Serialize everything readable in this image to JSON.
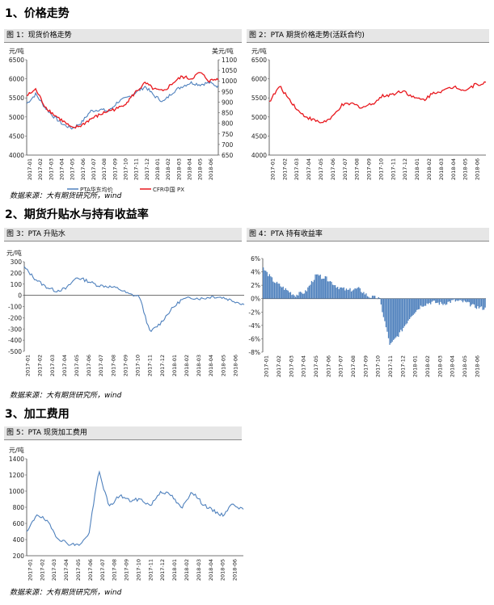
{
  "sections": [
    {
      "title": "1、价格走势"
    },
    {
      "title": "2、期货升贴水与持有收益率"
    },
    {
      "title": "3、加工费用"
    }
  ],
  "sources": [
    "数据来源：大有期货研究所，wind",
    "数据来源：大有期货研究所，wind",
    "数据来源：大有期货研究所，wind"
  ],
  "figures": {
    "fig1": {
      "caption": "图 1：现货价格走势"
    },
    "fig2": {
      "caption": "图 2：PTA 期货价格走势(活跃合约)"
    },
    "fig3": {
      "caption": "图 3：PTA 升贴水"
    },
    "fig4": {
      "caption": "图 4：PTA 持有收益率"
    },
    "fig5": {
      "caption": "图 5：PTA 现货加工费用"
    }
  },
  "chart_data": [
    {
      "id": "fig1",
      "type": "line",
      "ylabel": "元/吨",
      "y2label": "美元/吨",
      "ylim": [
        4000,
        6500
      ],
      "yticks": [
        "4000",
        "4500",
        "5000",
        "5500",
        "6000",
        "6500"
      ],
      "y2lim": [
        650,
        1100
      ],
      "y2ticks": [
        "650",
        "700",
        "750",
        "800",
        "850",
        "900",
        "950",
        "1000",
        "1050",
        "1100"
      ],
      "xticks": [
        "2017-01",
        "2017-02",
        "2017-03",
        "2017-04",
        "2017-05",
        "2017-06",
        "2017-07",
        "2017-08",
        "2017-09",
        "2017-10",
        "2017-11",
        "2017-12",
        "2018-01",
        "2018-02",
        "2018-03",
        "2018-04",
        "2018-05",
        "2018-06"
      ],
      "legend_position": "bottom",
      "series": [
        {
          "name": "PTA华东均价",
          "axis": "left",
          "color": "#4f81bd",
          "values": [
            5350,
            5600,
            5250,
            5000,
            4800,
            4700,
            4850,
            5150,
            5200,
            5150,
            5400,
            5500,
            5650,
            5800,
            5550,
            5400,
            5650,
            5800,
            5900,
            5850,
            5900,
            5800
          ]
        },
        {
          "name": "CFR中国 PX",
          "axis": "right",
          "color": "#e8181e",
          "values": [
            930,
            960,
            880,
            840,
            810,
            775,
            790,
            820,
            840,
            860,
            870,
            900,
            950,
            990,
            960,
            950,
            990,
            1020,
            1010,
            1040,
            1000,
            1010
          ]
        }
      ]
    },
    {
      "id": "fig2",
      "type": "line",
      "ylabel": "元/吨",
      "ylim": [
        4000,
        6500
      ],
      "yticks": [
        "4000",
        "4500",
        "5000",
        "5500",
        "6000",
        "6500"
      ],
      "xticks": [
        "2017-01",
        "2017-02",
        "2017-03",
        "2017-04",
        "2017-05",
        "2017-06",
        "2017-07",
        "2017-08",
        "2017-09",
        "2017-10",
        "2017-11",
        "2017-12",
        "2018-01",
        "2018-02",
        "2018-03",
        "2018-04",
        "2018-05",
        "2018-06"
      ],
      "series": [
        {
          "name": "",
          "color": "#e8181e",
          "values": [
            5400,
            5800,
            5450,
            5100,
            4950,
            4850,
            4950,
            5300,
            5350,
            5250,
            5350,
            5550,
            5600,
            5700,
            5500,
            5450,
            5650,
            5700,
            5800,
            5700,
            5850,
            5900
          ]
        }
      ]
    },
    {
      "id": "fig3",
      "type": "line",
      "ylabel": "元/吨",
      "ylim": [
        -500,
        300
      ],
      "yticks": [
        "-500",
        "-400",
        "-300",
        "-200",
        "-100",
        "0",
        "100",
        "200",
        "300"
      ],
      "xticks": [
        "2017-01",
        "2017-02",
        "2017-03",
        "2017-04",
        "2017-05",
        "2017-06",
        "2017-07",
        "2017-08",
        "2017-09",
        "2017-10",
        "2017-11",
        "2017-12",
        "2018-01",
        "2018-02",
        "2018-03",
        "2018-04",
        "2018-05",
        "2018-06"
      ],
      "series": [
        {
          "name": "",
          "color": "#4f81bd",
          "values": [
            250,
            150,
            80,
            40,
            60,
            160,
            130,
            90,
            80,
            60,
            10,
            -10,
            -330,
            -250,
            -130,
            -40,
            -20,
            -30,
            -10,
            -20,
            -50,
            -80
          ]
        }
      ]
    },
    {
      "id": "fig4",
      "type": "bar",
      "ylim": [
        -8,
        6
      ],
      "yticks": [
        "-8%",
        "-6%",
        "-4%",
        "-2%",
        "0%",
        "2%",
        "4%",
        "6%"
      ],
      "xticks": [
        "2017-01",
        "2017-02",
        "2017-03",
        "2017-04",
        "2017-05",
        "2017-06",
        "2017-07",
        "2017-08",
        "2017-09",
        "2017-10",
        "2017-11",
        "2017-12",
        "2018-01",
        "2018-02",
        "2018-03",
        "2018-04",
        "2018-05",
        "2018-06"
      ],
      "series": [
        {
          "name": "",
          "color": "#4f81bd",
          "values": [
            4.5,
            2.6,
            1.5,
            0.5,
            1.0,
            3.5,
            3.0,
            1.8,
            1.2,
            1.5,
            0.3,
            0.0,
            -7.0,
            -5.0,
            -2.5,
            -1.0,
            -0.5,
            -0.8,
            -0.3,
            -0.5,
            -1.2,
            -1.5
          ]
        }
      ]
    },
    {
      "id": "fig5",
      "type": "line",
      "ylabel": "元/吨",
      "ylim": [
        200,
        1400
      ],
      "yticks": [
        "200",
        "400",
        "600",
        "800",
        "1000",
        "1200",
        "1400"
      ],
      "xticks": [
        "2017-01",
        "2017-02",
        "2017-03",
        "2017-04",
        "2017-05",
        "2017-06",
        "2017-07",
        "2017-08",
        "2017-09",
        "2017-10",
        "2017-11",
        "2017-12",
        "2018-01",
        "2018-02",
        "2018-03",
        "2018-04",
        "2018-05",
        "2018-06"
      ],
      "series": [
        {
          "name": "",
          "color": "#4f81bd",
          "values": [
            480,
            720,
            620,
            420,
            350,
            330,
            450,
            1250,
            800,
            950,
            880,
            900,
            820,
            1000,
            950,
            780,
            1000,
            850,
            760,
            700,
            850,
            760
          ]
        }
      ]
    }
  ]
}
